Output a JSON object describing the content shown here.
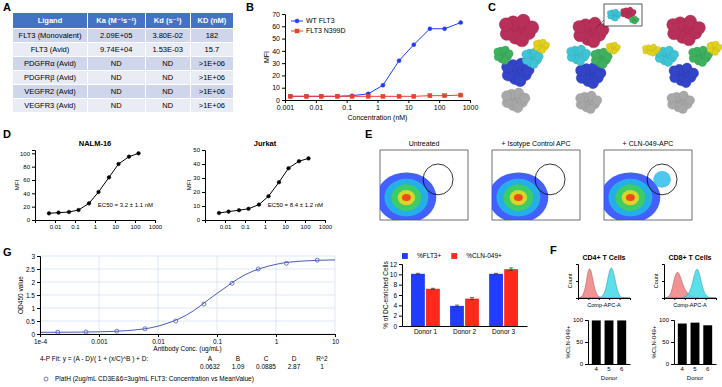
{
  "panel_labels": [
    "A",
    "B",
    "C",
    "D",
    "E",
    "F",
    "G"
  ],
  "table": {
    "header": [
      "Ligand",
      "Ka (M⁻¹s⁻¹)",
      "Kd (s⁻¹)",
      "KD (nM)"
    ],
    "rows": [
      [
        "FLT3 (Monovalent)",
        "2.09E+05",
        "3.80E-02",
        "182"
      ],
      [
        "FLT3 (Avid)",
        "9.74E+04",
        "1.53E-03",
        "15.7"
      ],
      [
        "PDGFRα (Avid)",
        "ND",
        "ND",
        ">1E+06"
      ],
      [
        "PDGFRβ (Avid)",
        "ND",
        "ND",
        ">1E+06"
      ],
      [
        "VEGFR2 (Avid)",
        "ND",
        "ND",
        ">1E+06"
      ],
      [
        "VEGFR3 (Avid)",
        "ND",
        "ND",
        ">1E+06"
      ]
    ]
  },
  "flow_plots": {
    "titles": [
      "Untreated",
      "+ Isotype Control APC",
      "+ CLN-049-APC"
    ]
  },
  "chart_data": [
    {
      "type": "line",
      "log": "x",
      "x_label": "Concentration (nM)",
      "y_label": "MFI",
      "x": [
        0.0015,
        0.005,
        0.015,
        0.05,
        0.15,
        0.5,
        1.5,
        5,
        15,
        50,
        150,
        500
      ],
      "xlim": [
        0.001,
        1000
      ],
      "xticks": [
        0.001,
        0.01,
        0.1,
        1,
        10,
        100,
        1000
      ],
      "ylim": [
        0,
        70
      ],
      "yticks": [
        0,
        10,
        20,
        30,
        40,
        50,
        60,
        70
      ],
      "legend": "top-left",
      "series": [
        {
          "name": "WT FLT3",
          "color": "#1f3cff",
          "marker": "circle",
          "values": [
            3,
            3,
            3,
            3,
            3.5,
            5,
            12,
            32,
            45,
            58,
            58,
            63
          ]
        },
        {
          "name": "FLT3 N399D",
          "color": "#e8402a",
          "marker": "square",
          "values": [
            3,
            3,
            3,
            3,
            3,
            3,
            3,
            3,
            3,
            3.5,
            3.5,
            4
          ]
        }
      ]
    },
    {
      "type": "line",
      "log": "x",
      "title": "NALM-16",
      "annotation": "EC50 = 3.2 ± 1.1 nM",
      "y_label": "MFI",
      "x": [
        0.005,
        0.015,
        0.05,
        0.15,
        0.5,
        1.5,
        5,
        15,
        50,
        150
      ],
      "xlim": [
        0.001,
        1000
      ],
      "xticks": [
        0.01,
        0.1,
        1,
        10,
        100,
        1000
      ],
      "ylim": [
        0,
        105
      ],
      "yticks": [
        0,
        20,
        40,
        60,
        80,
        100
      ],
      "series": [
        {
          "color": "#000000",
          "marker": "circle",
          "values": [
            10,
            11,
            12,
            15,
            25,
            42,
            64,
            84,
            95,
            100
          ]
        }
      ]
    },
    {
      "type": "line",
      "log": "x",
      "title": "Jurkat",
      "annotation": "EC50 = 8.4 ± 1.2 nM",
      "y_label": "MFI",
      "x": [
        0.005,
        0.015,
        0.05,
        0.15,
        0.5,
        1.5,
        5,
        15,
        50,
        150
      ],
      "xlim": [
        0.001,
        1000
      ],
      "xticks": [
        0.01,
        0.1,
        1,
        10,
        100,
        1000
      ],
      "ylim": [
        0,
        50
      ],
      "yticks": [
        0,
        10,
        20,
        30,
        40,
        50
      ],
      "series": [
        {
          "color": "#000000",
          "marker": "circle",
          "values": [
            5,
            6,
            7,
            8,
            11,
            17,
            27,
            37,
            42,
            44
          ]
        }
      ]
    },
    {
      "type": "bar",
      "y_label": "% of DC-enriched Cells",
      "categories": [
        "Donor 1",
        "Donor 2",
        "Donor 3"
      ],
      "ylim": [
        0,
        12
      ],
      "yticks": [
        0,
        2,
        4,
        6,
        8,
        10,
        12
      ],
      "legend": "top",
      "series": [
        {
          "name": "%FLT3+",
          "color": "#1f3cff",
          "values": [
            10.1,
            3.9,
            10.1
          ],
          "error": [
            0.1,
            0.15,
            0.1
          ]
        },
        {
          "name": "%CLN-049+",
          "color": "#ff2a1a",
          "values": [
            7.2,
            5.3,
            11.0
          ],
          "error": [
            0.1,
            0.2,
            0.25
          ]
        }
      ]
    },
    {
      "type": "area",
      "title": "CD4+ T Cells",
      "x_label": "Comp-APC-A",
      "y_label": "Count",
      "tick_labels": false,
      "x": [
        0,
        5,
        10,
        15,
        20,
        25,
        30,
        35,
        40,
        45,
        50,
        55,
        60,
        65,
        70,
        75,
        80,
        85,
        90,
        95,
        100
      ],
      "xlim": [
        0,
        100
      ],
      "xticks": [
        0,
        20,
        40,
        60,
        80,
        100
      ],
      "ylim": [
        0,
        100
      ],
      "yticks": [
        0,
        50,
        100
      ],
      "series": [
        {
          "color": "#f08080",
          "values": [
            0,
            2,
            8,
            35,
            90,
            85,
            40,
            12,
            3,
            1,
            0,
            0,
            0,
            0,
            0,
            0,
            0,
            0,
            0,
            0,
            0
          ]
        },
        {
          "color": "#40d8e8",
          "values": [
            0,
            0,
            0,
            0,
            0,
            0,
            0,
            0,
            1,
            3,
            10,
            35,
            80,
            95,
            65,
            25,
            6,
            1,
            0,
            0,
            0
          ]
        }
      ]
    },
    {
      "type": "area",
      "title": "CD8+ T Cells",
      "x_label": "Comp-APC-A",
      "y_label": "Count",
      "tick_labels": false,
      "x": [
        0,
        5,
        10,
        15,
        20,
        25,
        30,
        35,
        40,
        45,
        50,
        55,
        60,
        65,
        70,
        75,
        80,
        85,
        90,
        95,
        100
      ],
      "xlim": [
        0,
        100
      ],
      "xticks": [
        0,
        20,
        40,
        60,
        80,
        100
      ],
      "ylim": [
        0,
        100
      ],
      "yticks": [
        0,
        50,
        100
      ],
      "series": [
        {
          "color": "#f08080",
          "values": [
            0,
            1,
            5,
            20,
            60,
            80,
            70,
            45,
            25,
            15,
            8,
            4,
            2,
            1,
            0,
            0,
            0,
            0,
            0,
            0,
            0
          ]
        },
        {
          "color": "#40d8e8",
          "values": [
            0,
            0,
            0,
            0,
            0,
            0,
            0,
            1,
            3,
            8,
            20,
            45,
            80,
            90,
            60,
            25,
            8,
            2,
            0,
            0,
            0
          ]
        }
      ]
    },
    {
      "type": "bar",
      "x_label": "Donor",
      "y_label": "%CLN-049+",
      "categories": [
        "4",
        "5",
        "6"
      ],
      "ylim": [
        0,
        100
      ],
      "yticks": [
        0,
        50,
        100
      ],
      "color": "#000000",
      "values": [
        99,
        99,
        99
      ]
    },
    {
      "type": "bar",
      "x_label": "Donor",
      "y_label": "%CLN-049+",
      "categories": [
        "4",
        "5",
        "6"
      ],
      "ylim": [
        0,
        100
      ],
      "yticks": [
        0,
        50,
        100
      ],
      "color": "#000000",
      "values": [
        92,
        94,
        88
      ]
    },
    {
      "type": "line",
      "log": "x",
      "x_label": "Antibody Conc. (ug/mL)",
      "y_label": "OD450 value",
      "xlim": [
        0.0001,
        10
      ],
      "xticks": [
        {
          "value": 0.0001,
          "label": "1e-4"
        },
        0.001,
        0.01,
        0.1,
        1,
        10
      ],
      "ylim": [
        0,
        3
      ],
      "yticks": [
        0,
        0.5,
        1,
        1.5,
        2,
        2.5,
        3
      ],
      "grid": true,
      "legend": "bottom",
      "fit_label": "4-P Fit: y = (A - D)/( 1 + (x/C)^B ) + D:",
      "fit_labels": [
        "A",
        "B",
        "C",
        "D",
        "R^2"
      ],
      "fit_values": [
        0.0632,
        1.09,
        0.0885,
        2.87,
        1
      ],
      "series": [
        {
          "name": "PlatH (2ug/mL CD3E&6=3ug/mL FLT3: Concentration vs MeanValue)",
          "type": "scatter",
          "marker": "circle",
          "color": "#4a5ab8",
          "x": [
            0.0002,
            0.0006,
            0.002,
            0.006,
            0.02,
            0.06,
            0.18,
            0.5,
            1.5,
            5
          ],
          "values": [
            0.07,
            0.08,
            0.11,
            0.2,
            0.5,
            1.15,
            1.95,
            2.5,
            2.72,
            2.84
          ]
        },
        {
          "type": "line",
          "color": "#4a5ab8",
          "x": [
            0.0001,
            0.0003,
            0.001,
            0.003,
            0.01,
            0.03,
            0.1,
            0.3,
            1,
            3,
            10
          ],
          "values": [
            0.065,
            0.069,
            0.084,
            0.131,
            0.302,
            0.72,
            1.56,
            2.28,
            2.68,
            2.81,
            2.85
          ]
        }
      ]
    }
  ]
}
